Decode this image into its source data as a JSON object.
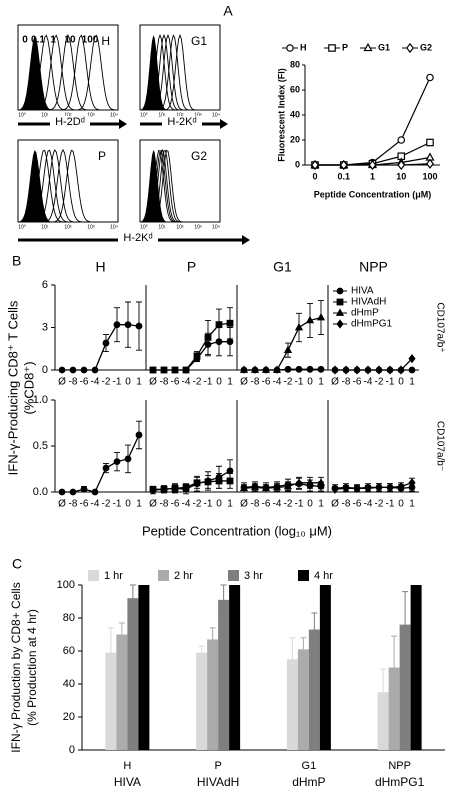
{
  "panel_labels": [
    "A",
    "B",
    "C"
  ],
  "histograms": {
    "dose_labels": [
      "0",
      "0.1",
      "1",
      "10",
      "100"
    ],
    "xticks": [
      "10⁰",
      "10¹",
      "10²",
      "10³",
      "10⁴"
    ],
    "panels": [
      "H",
      "G1",
      "P",
      "G2"
    ],
    "axis_labels": [
      "H-2Dᵈ",
      "H-2Kᵈ",
      "H-2Kᵈ"
    ]
  },
  "chart_data": [
    {
      "type": "line",
      "ylabel": "Fluorescent Index (FI)",
      "xlabel": "Peptide Concentration (μM)",
      "categories": [
        "0",
        "0.1",
        "1",
        "10",
        "100"
      ],
      "ylim": [
        0,
        80
      ],
      "yticks": [
        0,
        20,
        40,
        60,
        80
      ],
      "series": [
        {
          "name": "H",
          "marker": "circle",
          "values": [
            0,
            0,
            2,
            20,
            70
          ]
        },
        {
          "name": "P",
          "marker": "square",
          "values": [
            0,
            0,
            1,
            7,
            18
          ]
        },
        {
          "name": "G1",
          "marker": "triangle",
          "values": [
            0,
            0,
            0,
            2,
            6
          ]
        },
        {
          "name": "G2",
          "marker": "diamond",
          "values": [
            0,
            0,
            0,
            0,
            1
          ]
        }
      ]
    },
    {
      "type": "line-grid",
      "ylabel": "IFN-γ-Producing CD8⁺ T Cells",
      "ylabel2": "(%CD8⁺)",
      "xlabel": "Peptide Concentration (log₁₀ μM)",
      "columns": [
        "H",
        "P",
        "G1",
        "NPP"
      ],
      "categories": [
        "Ø",
        "-8",
        "-6",
        "-4",
        "-2",
        "-1",
        "0",
        "1"
      ],
      "legend": [
        {
          "name": "HIVA",
          "marker": "circle"
        },
        {
          "name": "HIVAdH",
          "marker": "square"
        },
        {
          "name": "dHmP",
          "marker": "triangle"
        },
        {
          "name": "dHmPG1",
          "marker": "diamond"
        }
      ],
      "rows": [
        {
          "label": "CD107a/b⁺",
          "ylim": [
            0,
            6
          ],
          "yticks": [
            0,
            3,
            6
          ],
          "panels": [
            {
              "series": [
                {
                  "marker": "circle",
                  "values": [
                    0,
                    0,
                    0,
                    0,
                    1.9,
                    3.2,
                    3.2,
                    3.1
                  ],
                  "errors": [
                    0,
                    0,
                    0,
                    0,
                    0.6,
                    1.2,
                    1.6,
                    1.7
                  ]
                }
              ]
            },
            {
              "series": [
                {
                  "marker": "circle",
                  "values": [
                    0,
                    0,
                    0,
                    0,
                    0.8,
                    1.8,
                    2.0,
                    2.0
                  ],
                  "errors": [
                    0,
                    0,
                    0,
                    0,
                    0.2,
                    0.8,
                    1.0,
                    1.0
                  ]
                },
                {
                  "marker": "square",
                  "values": [
                    0,
                    0,
                    0,
                    0,
                    1.0,
                    2.3,
                    3.2,
                    3.3
                  ],
                  "errors": [
                    0,
                    0,
                    0,
                    0,
                    0.3,
                    1.2,
                    1.1,
                    1.1
                  ]
                }
              ]
            },
            {
              "series": [
                {
                  "marker": "circle",
                  "values": [
                    0,
                    0,
                    0,
                    0,
                    0.05,
                    0.05,
                    0.05,
                    0.05
                  ],
                  "errors": [
                    0,
                    0,
                    0,
                    0,
                    0.05,
                    0.05,
                    0.05,
                    0.05
                  ]
                },
                {
                  "marker": "triangle",
                  "values": [
                    0,
                    0,
                    0,
                    0,
                    1.4,
                    3.0,
                    3.5,
                    3.7
                  ],
                  "errors": [
                    0,
                    0,
                    0,
                    0,
                    0.5,
                    1.0,
                    1.2,
                    1.2
                  ]
                }
              ]
            },
            {
              "series": [
                {
                  "marker": "circle",
                  "values": [
                    0,
                    0,
                    0,
                    0,
                    0,
                    0,
                    0,
                    0
                  ],
                  "errors": [
                    0,
                    0,
                    0,
                    0,
                    0,
                    0,
                    0,
                    0
                  ]
                },
                {
                  "marker": "diamond",
                  "values": [
                    0,
                    0,
                    0,
                    0,
                    0,
                    0,
                    0,
                    0.8
                  ],
                  "errors": [
                    0,
                    0,
                    0,
                    0,
                    0,
                    0,
                    0,
                    0
                  ]
                }
              ]
            }
          ]
        },
        {
          "label": "CD107a/b⁻",
          "ylim": [
            0,
            1
          ],
          "yticks": [
            {
              "value": 0,
              "label": "0.0"
            },
            0.5,
            {
              "value": 1,
              "label": "1.0"
            }
          ],
          "panels": [
            {
              "series": [
                {
                  "marker": "circle",
                  "values": [
                    0,
                    0,
                    0.03,
                    0,
                    0.26,
                    0.33,
                    0.36,
                    0.62
                  ],
                  "errors": [
                    0,
                    0,
                    0.03,
                    0,
                    0.05,
                    0.1,
                    0.15,
                    0.15
                  ]
                }
              ]
            },
            {
              "series": [
                {
                  "marker": "circle",
                  "values": [
                    0.02,
                    0.03,
                    0.04,
                    0.03,
                    0.09,
                    0.12,
                    0.16,
                    0.23
                  ],
                  "errors": [
                    0.04,
                    0.04,
                    0.05,
                    0.05,
                    0.08,
                    0.1,
                    0.12,
                    0.12
                  ]
                },
                {
                  "marker": "square",
                  "values": [
                    0.03,
                    0.03,
                    0.04,
                    0.05,
                    0.1,
                    0.11,
                    0.12,
                    0.12
                  ],
                  "errors": [
                    0.03,
                    0.03,
                    0.04,
                    0.04,
                    0.06,
                    0.07,
                    0.08,
                    0.08
                  ]
                }
              ]
            },
            {
              "series": [
                {
                  "marker": "circle",
                  "values": [
                    0.05,
                    0.06,
                    0.05,
                    0.06,
                    0.08,
                    0.09,
                    0.07,
                    0.06
                  ],
                  "errors": [
                    0.05,
                    0.05,
                    0.05,
                    0.05,
                    0.06,
                    0.06,
                    0.06,
                    0.05
                  ]
                },
                {
                  "marker": "triangle",
                  "values": [
                    0.04,
                    0.05,
                    0.04,
                    0.05,
                    0.06,
                    0.1,
                    0.1,
                    0.1
                  ],
                  "errors": [
                    0.04,
                    0.04,
                    0.04,
                    0.04,
                    0.05,
                    0.06,
                    0.06,
                    0.06
                  ]
                }
              ]
            },
            {
              "series": [
                {
                  "marker": "circle",
                  "values": [
                    0.04,
                    0.05,
                    0.04,
                    0.05,
                    0.05,
                    0.05,
                    0.04,
                    0.05
                  ],
                  "errors": [
                    0.04,
                    0.04,
                    0.04,
                    0.04,
                    0.04,
                    0.04,
                    0.04,
                    0.04
                  ]
                },
                {
                  "marker": "diamond",
                  "values": [
                    0.03,
                    0.04,
                    0.04,
                    0.04,
                    0.05,
                    0.05,
                    0.06,
                    0.1
                  ],
                  "errors": [
                    0.03,
                    0.03,
                    0.03,
                    0.03,
                    0.04,
                    0.04,
                    0.04,
                    0.05
                  ]
                }
              ]
            }
          ]
        }
      ]
    },
    {
      "type": "bar",
      "ylabel": [
        "IFN-γ Production by CD8+ Cells",
        "(% Production at 4 hr)"
      ],
      "categories": [
        "H",
        "P",
        "G1",
        "NPP"
      ],
      "category_sublabels": [
        "HIVA",
        "HIVAdH",
        "dHmP",
        "dHmPG1"
      ],
      "ylim": [
        0,
        100
      ],
      "yticks": [
        0,
        20,
        40,
        60,
        80,
        100
      ],
      "series": [
        {
          "name": "1 hr",
          "color": "#d9d9d9",
          "values": [
            59,
            59,
            55,
            35
          ],
          "errors": [
            15,
            4,
            13,
            14
          ]
        },
        {
          "name": "2 hr",
          "color": "#ababab",
          "values": [
            70,
            67,
            61,
            50
          ],
          "errors": [
            7,
            7,
            7,
            19
          ]
        },
        {
          "name": "3 hr",
          "color": "#7f7f7f",
          "values": [
            92,
            91,
            73,
            76
          ],
          "errors": [
            8,
            9,
            10,
            20
          ]
        },
        {
          "name": "4 hr",
          "color": "#000000",
          "values": [
            100,
            100,
            100,
            100
          ],
          "errors": [
            0,
            0,
            0,
            0
          ]
        }
      ]
    }
  ]
}
